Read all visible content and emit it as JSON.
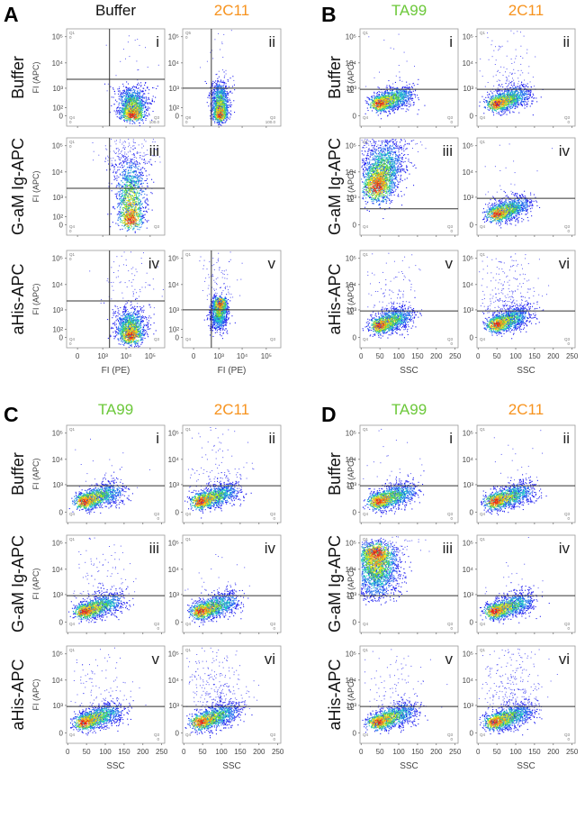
{
  "colors": {
    "black": "#111111",
    "orange": "#f7931e",
    "green": "#6cc83a"
  },
  "chart_data": [
    {
      "panel": "A",
      "type": "scatter",
      "subtype": "flow-cytometry-density",
      "columns": [
        {
          "label": "Buffer",
          "color": "#111111"
        },
        {
          "label": "2C11",
          "color": "#f7931e"
        }
      ],
      "rows": [
        "Buffer",
        "G-aM Ig-APC",
        "aHis-APC"
      ],
      "xlabel": "FI (PE)",
      "ylabel": "FI (APC)",
      "xticks": [
        "0",
        "10³",
        "10⁴",
        "10⁵"
      ],
      "yticks": [
        "0",
        "10²",
        "10³",
        "10⁴",
        "10⁵"
      ],
      "xscale": "biexponential",
      "yscale": "biexponential",
      "plots": [
        {
          "row": 0,
          "col": 0,
          "label": "i",
          "gate_x": 2000,
          "gate_y": 2300,
          "pop": {
            "x": 18000,
            "y": 0,
            "x2": 18000,
            "y2": 800
          },
          "spread": "tight",
          "scatter": "low",
          "q": {
            "q1": "Q1",
            "q1v": "0",
            "q4": "Q4",
            "q4v": "0",
            "q3": "Q3",
            "q3v": "100.0"
          }
        },
        {
          "row": 0,
          "col": 1,
          "label": "ii",
          "gate_x": 440,
          "gate_y": 1000,
          "pop": {
            "x": 1100,
            "y": 0,
            "x2": 1100,
            "y2": 1200
          },
          "spread": "narrow",
          "scatter": "low",
          "q": {
            "q1": "Q5",
            "q1v": "0",
            "q4": "Q8",
            "q4v": "0",
            "q3": "Q3",
            "q3v": "100.0"
          }
        },
        {
          "row": 1,
          "col": 0,
          "label": "iii",
          "gate_x": 2000,
          "gate_y": 2300,
          "pop": {
            "x": 15000,
            "y": 30,
            "x2": 15000,
            "y2": 20000
          },
          "spread": "tall",
          "scatter": "high",
          "q": {
            "q1": "Q1",
            "q1v": "0",
            "q4": "Q4",
            "q4v": "0",
            "q3": "Q3",
            "q3v": ""
          }
        },
        {
          "row": 2,
          "col": 0,
          "label": "iv",
          "gate_x": 2000,
          "gate_y": 2300,
          "pop": {
            "x": 15000,
            "y": 10,
            "x2": 15000,
            "y2": 600
          },
          "spread": "tall",
          "scatter": "medium",
          "q": {
            "q1": "Q1",
            "q1v": "0",
            "q4": "Q4",
            "q4v": "0",
            "q3": "Q3",
            "q3v": ""
          }
        },
        {
          "row": 2,
          "col": 1,
          "label": "v",
          "gate_x": 440,
          "gate_y": 1000,
          "pop": {
            "x": 1100,
            "y": 2100,
            "x2": 900,
            "y2": 200
          },
          "spread": "narrow",
          "scatter": "medium",
          "q": {
            "q1": "Q1",
            "q1v": "",
            "q4": "Q4",
            "q4v": "",
            "q3": "Q3",
            "q3v": ""
          }
        }
      ]
    },
    {
      "panel": "B",
      "type": "scatter",
      "subtype": "flow-cytometry-density",
      "columns": [
        {
          "label": "TA99",
          "color": "#6cc83a"
        },
        {
          "label": "2C11",
          "color": "#f7931e"
        }
      ],
      "rows": [
        "Buffer",
        "G-aM Ig-APC",
        "aHis-APC"
      ],
      "xlabel": "SSC",
      "ylabel": "FI (APC)",
      "xticks": [
        "0",
        "50",
        "100",
        "150",
        "200",
        "250"
      ],
      "yticks": [
        "0",
        "10³",
        "10⁴",
        "10⁵"
      ],
      "xscale": "linear",
      "yscale": "biexponential",
      "plots": [
        {
          "row": 0,
          "col": 0,
          "label": "i",
          "gate_y": 900,
          "pop": {
            "x": 45,
            "y": 180,
            "x2": 120,
            "y2": 620
          },
          "spread": "normal",
          "scatter": "low",
          "q": {
            "q1": "Q1",
            "q1v": "",
            "q4": "Q4",
            "q4v": "",
            "q3": "Q3",
            "q3v": "0"
          }
        },
        {
          "row": 0,
          "col": 1,
          "label": "ii",
          "gate_y": 900,
          "pop": {
            "x": 45,
            "y": 180,
            "x2": 120,
            "y2": 620
          },
          "spread": "normal",
          "scatter": "medium",
          "q": {
            "q1": "Q1",
            "q1v": "",
            "q4": "Q4",
            "q4v": "",
            "q3": "Q3",
            "q3v": "0"
          }
        },
        {
          "row": 1,
          "col": 0,
          "label": "iii",
          "gate_y": 300,
          "pop": {
            "x": 40,
            "y": 2500,
            "x2": 70,
            "y2": 60000
          },
          "spread": "wide",
          "scatter": "high",
          "q": {
            "q1": "Q1",
            "q1v": "",
            "q4": "Q4",
            "q4v": "",
            "q3": "Q3",
            "q3v": "0"
          }
        },
        {
          "row": 1,
          "col": 1,
          "label": "iv",
          "gate_y": 900,
          "pop": {
            "x": 45,
            "y": 150,
            "x2": 120,
            "y2": 550
          },
          "spread": "normal",
          "scatter": "low",
          "q": {
            "q1": "Q1",
            "q1v": "",
            "q4": "Q4",
            "q4v": "",
            "q3": "Q3",
            "q3v": "0"
          }
        },
        {
          "row": 2,
          "col": 0,
          "label": "v",
          "gate_y": 900,
          "pop": {
            "x": 45,
            "y": 180,
            "x2": 120,
            "y2": 650
          },
          "spread": "normal",
          "scatter": "medium",
          "q": {
            "q1": "Q1",
            "q1v": "",
            "q4": "Q4",
            "q4v": "",
            "q3": "Q3",
            "q3v": "0"
          }
        },
        {
          "row": 2,
          "col": 1,
          "label": "vi",
          "gate_y": 900,
          "pop": {
            "x": 45,
            "y": 200,
            "x2": 120,
            "y2": 700
          },
          "spread": "normal",
          "scatter": "high",
          "q": {
            "q1": "Q1",
            "q1v": "",
            "q4": "Q4",
            "q4v": "",
            "q3": "Q3",
            "q3v": "0"
          }
        }
      ]
    },
    {
      "panel": "C",
      "type": "scatter",
      "subtype": "flow-cytometry-density",
      "columns": [
        {
          "label": "TA99",
          "color": "#6cc83a"
        },
        {
          "label": "2C11",
          "color": "#f7931e"
        }
      ],
      "rows": [
        "Buffer",
        "G-aM Ig-APC",
        "aHis-APC"
      ],
      "xlabel": "SSC",
      "ylabel": "FI (APC)",
      "xticks": [
        "0",
        "50",
        "100",
        "150",
        "200",
        "250"
      ],
      "yticks": [
        "0",
        "10³",
        "10⁴",
        "10⁵"
      ],
      "xscale": "linear",
      "yscale": "biexponential",
      "plots": [
        {
          "row": 0,
          "col": 0,
          "label": "i",
          "gate_y": 900,
          "pop": {
            "x": 40,
            "y": 150,
            "x2": 130,
            "y2": 600
          },
          "spread": "normal",
          "scatter": "low",
          "q": {
            "q1": "Q1",
            "q1v": "",
            "q4": "Q4",
            "q4v": "",
            "q3": "Q3",
            "q3v": "0"
          }
        },
        {
          "row": 0,
          "col": 1,
          "label": "ii",
          "gate_y": 900,
          "pop": {
            "x": 40,
            "y": 150,
            "x2": 130,
            "y2": 600
          },
          "spread": "normal",
          "scatter": "medium",
          "q": {
            "q1": "Q1",
            "q1v": "",
            "q4": "Q4",
            "q4v": "",
            "q3": "Q3",
            "q3v": "0"
          }
        },
        {
          "row": 1,
          "col": 0,
          "label": "iii",
          "gate_y": 900,
          "pop": {
            "x": 40,
            "y": 150,
            "x2": 130,
            "y2": 600
          },
          "spread": "normal",
          "scatter": "medium",
          "q": {
            "q1": "Q1",
            "q1v": "",
            "q4": "Q4",
            "q4v": "",
            "q3": "Q3",
            "q3v": "0"
          }
        },
        {
          "row": 1,
          "col": 1,
          "label": "iv",
          "gate_y": 900,
          "pop": {
            "x": 40,
            "y": 150,
            "x2": 130,
            "y2": 600
          },
          "spread": "normal",
          "scatter": "low",
          "q": {
            "q1": "Q1",
            "q1v": "",
            "q4": "Q4",
            "q4v": "",
            "q3": "Q3",
            "q3v": "0"
          }
        },
        {
          "row": 2,
          "col": 0,
          "label": "v",
          "gate_y": 900,
          "pop": {
            "x": 40,
            "y": 150,
            "x2": 130,
            "y2": 650
          },
          "spread": "normal",
          "scatter": "medium",
          "q": {
            "q1": "Q1",
            "q1v": "",
            "q4": "Q4",
            "q4v": "",
            "q3": "Q3",
            "q3v": "0"
          }
        },
        {
          "row": 2,
          "col": 1,
          "label": "vi",
          "gate_y": 900,
          "pop": {
            "x": 40,
            "y": 150,
            "x2": 130,
            "y2": 650
          },
          "spread": "normal",
          "scatter": "high",
          "q": {
            "q1": "Q1",
            "q1v": "",
            "q4": "Q4",
            "q4v": "",
            "q3": "Q3",
            "q3v": "0"
          }
        }
      ]
    },
    {
      "panel": "D",
      "type": "scatter",
      "subtype": "flow-cytometry-density",
      "columns": [
        {
          "label": "TA99",
          "color": "#6cc83a"
        },
        {
          "label": "2C11",
          "color": "#f7931e"
        }
      ],
      "rows": [
        "Buffer",
        "G-aM Ig-APC",
        "aHis-APC"
      ],
      "xlabel": "SSC",
      "ylabel": "FI (APC)",
      "xticks": [
        "0",
        "50",
        "100",
        "150",
        "200",
        "250"
      ],
      "yticks": [
        "0",
        "10³",
        "10⁴",
        "10⁵"
      ],
      "xscale": "linear",
      "yscale": "biexponential",
      "plots": [
        {
          "row": 0,
          "col": 0,
          "label": "i",
          "gate_y": 900,
          "pop": {
            "x": 40,
            "y": 150,
            "x2": 130,
            "y2": 600
          },
          "spread": "normal",
          "scatter": "low",
          "q": {
            "q1": "Q1",
            "q1v": "",
            "q4": "Q4",
            "q4v": "",
            "q3": "Q3",
            "q3v": "0"
          }
        },
        {
          "row": 0,
          "col": 1,
          "label": "ii",
          "gate_y": 900,
          "pop": {
            "x": 40,
            "y": 150,
            "x2": 130,
            "y2": 600
          },
          "spread": "normal",
          "scatter": "low",
          "q": {
            "q1": "Q1",
            "q1v": "",
            "q4": "Q4",
            "q4v": "",
            "q3": "Q3",
            "q3v": "0"
          }
        },
        {
          "row": 1,
          "col": 0,
          "label": "iii",
          "gate_y": 900,
          "pop": {
            "x": 40,
            "y": 50000,
            "x2": 40,
            "y2": 1500
          },
          "spread": "top",
          "scatter": "high",
          "q": {
            "q1": "Q1",
            "q1v": "",
            "q4": "Q4",
            "q4v": "",
            "q3": "Q3",
            "q3v": "0"
          }
        },
        {
          "row": 1,
          "col": 1,
          "label": "iv",
          "gate_y": 900,
          "pop": {
            "x": 40,
            "y": 150,
            "x2": 130,
            "y2": 600
          },
          "spread": "normal",
          "scatter": "low",
          "q": {
            "q1": "Q1",
            "q1v": "",
            "q4": "Q4",
            "q4v": "",
            "q3": "Q3",
            "q3v": "0"
          }
        },
        {
          "row": 2,
          "col": 0,
          "label": "v",
          "gate_y": 900,
          "pop": {
            "x": 40,
            "y": 150,
            "x2": 130,
            "y2": 650
          },
          "spread": "normal",
          "scatter": "medium",
          "q": {
            "q1": "Q1",
            "q1v": "",
            "q4": "Q4",
            "q4v": "",
            "q3": "Q3",
            "q3v": "0"
          }
        },
        {
          "row": 2,
          "col": 1,
          "label": "vi",
          "gate_y": 900,
          "pop": {
            "x": 40,
            "y": 150,
            "x2": 130,
            "y2": 650
          },
          "spread": "normal",
          "scatter": "high",
          "q": {
            "q1": "Q1",
            "q1v": "",
            "q4": "Q4",
            "q4v": "",
            "q3": "Q3",
            "q3v": "0"
          }
        }
      ]
    }
  ]
}
